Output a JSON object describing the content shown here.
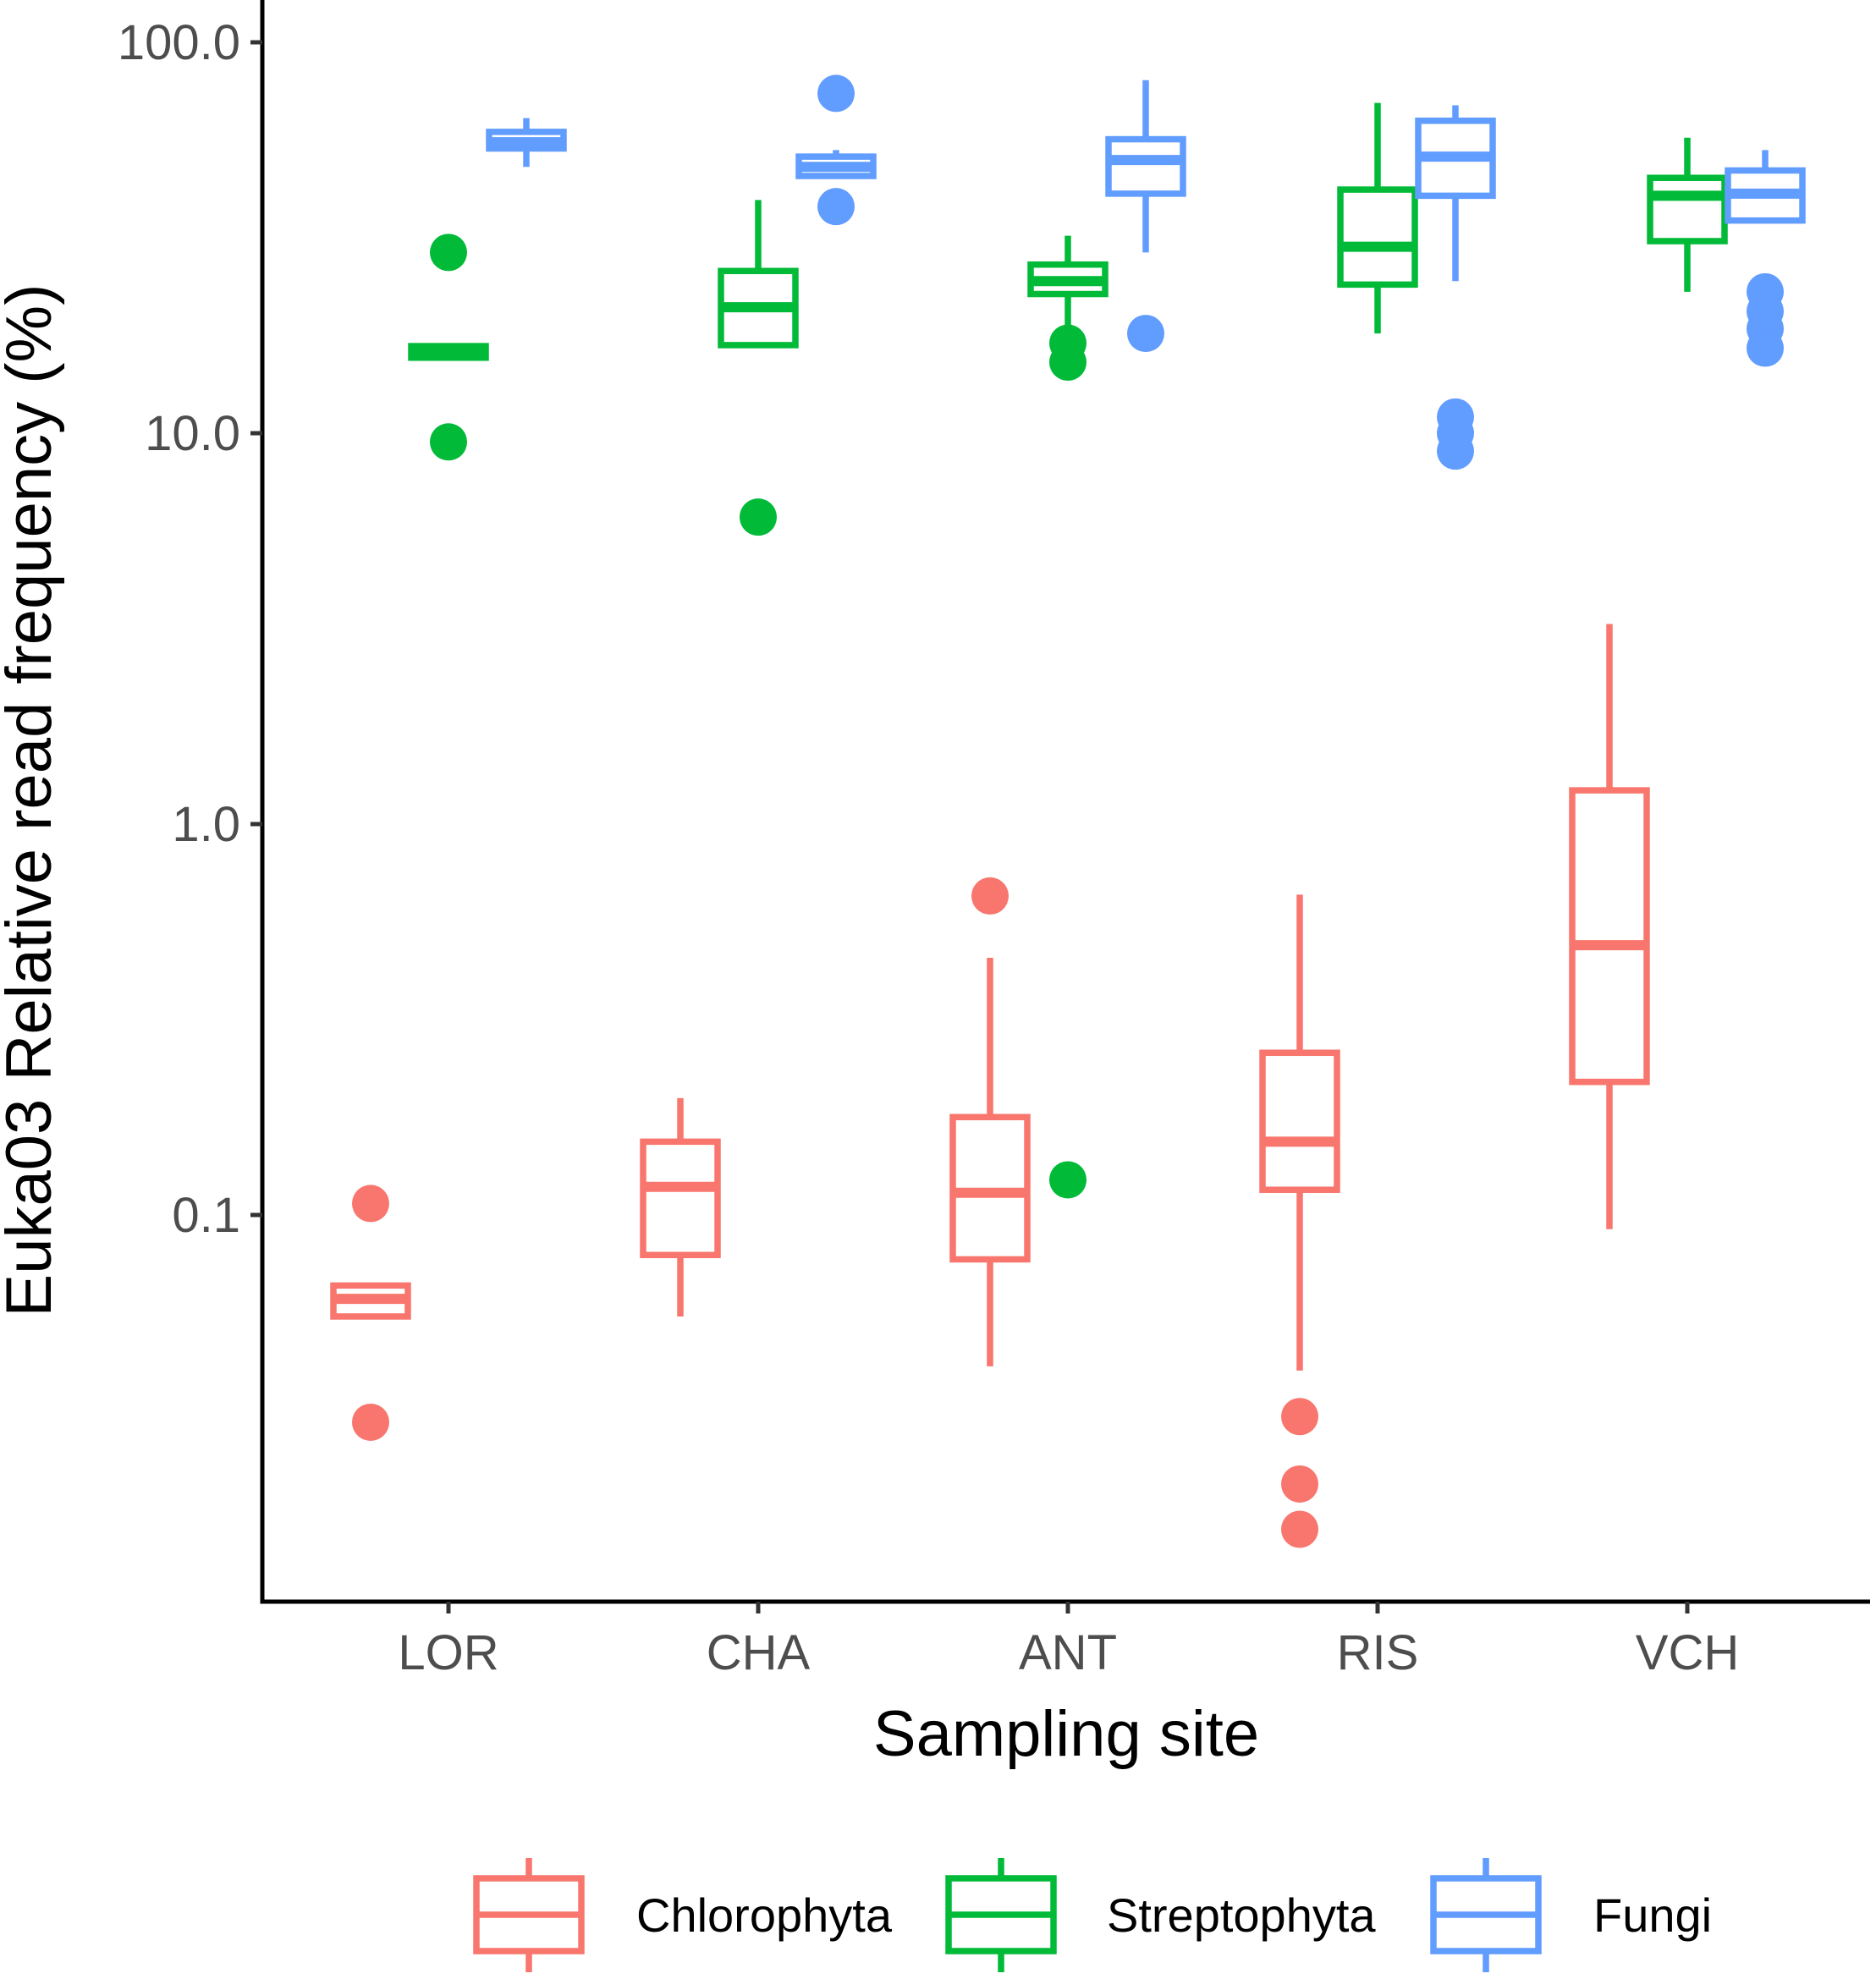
{
  "chart_data": {
    "type": "boxplot",
    "title": "",
    "xlabel": "Sampling site",
    "ylabel": "Euka03 Relative read frequency (%)",
    "y_scale": "log10",
    "ylim": [
      0.012,
      100
    ],
    "y_ticks": [
      0.1,
      1.0,
      10.0,
      100.0
    ],
    "y_tick_labels": [
      "0.1",
      "1.0",
      "10.0",
      "100.0"
    ],
    "categories": [
      "LOR",
      "CHA",
      "ANT",
      "RIS",
      "VCH"
    ],
    "legend": {
      "position": "bottom",
      "entries": [
        "Chlorophyta",
        "Streptophyta",
        "Fungi"
      ]
    },
    "series": [
      {
        "name": "Chlorophyta",
        "color": "#F8766D",
        "boxes": [
          {
            "category": "LOR",
            "whisker_low": 0.055,
            "q1": 0.055,
            "median": 0.061,
            "q3": 0.066,
            "whisker_high": 0.066,
            "outliers": [
              0.107,
              0.0295
            ]
          },
          {
            "category": "CHA",
            "whisker_low": 0.055,
            "q1": 0.079,
            "median": 0.118,
            "q3": 0.154,
            "whisker_high": 0.199,
            "outliers": []
          },
          {
            "category": "ANT",
            "whisker_low": 0.041,
            "q1": 0.077,
            "median": 0.114,
            "q3": 0.178,
            "whisker_high": 0.455,
            "outliers": [
              0.655
            ]
          },
          {
            "category": "RIS",
            "whisker_low": 0.04,
            "q1": 0.116,
            "median": 0.154,
            "q3": 0.26,
            "whisker_high": 0.66,
            "outliers": [
              0.0305,
              0.0205,
              0.0157
            ]
          },
          {
            "category": "VCH",
            "whisker_low": 0.092,
            "q1": 0.219,
            "median": 0.49,
            "q3": 1.22,
            "whisker_high": 3.25,
            "outliers": []
          }
        ]
      },
      {
        "name": "Streptophyta",
        "color": "#00BA38",
        "boxes": [
          {
            "category": "LOR",
            "whisker_low": 15.6,
            "q1": 15.6,
            "median": 16.0,
            "q3": 16.7,
            "whisker_high": 16.7,
            "outliers": [
              29.0,
              9.5
            ]
          },
          {
            "category": "CHA",
            "whisker_low": 16.8,
            "q1": 16.8,
            "median": 21.0,
            "q3": 26.0,
            "whisker_high": 39.5,
            "outliers": [
              6.1
            ]
          },
          {
            "category": "ANT",
            "whisker_low": 17.5,
            "q1": 22.7,
            "median": 24.5,
            "q3": 27.0,
            "whisker_high": 32.0,
            "outliers": [
              17.0,
              15.2,
              0.123
            ]
          },
          {
            "category": "RIS",
            "whisker_low": 18.0,
            "q1": 24.0,
            "median": 30.0,
            "q3": 42.0,
            "whisker_high": 70.0,
            "outliers": []
          },
          {
            "category": "VCH",
            "whisker_low": 23.0,
            "q1": 31.0,
            "median": 40.5,
            "q3": 45.0,
            "whisker_high": 57.0,
            "outliers": []
          }
        ]
      },
      {
        "name": "Fungi",
        "color": "#619CFF",
        "boxes": [
          {
            "category": "LOR",
            "whisker_low": 48.0,
            "q1": 53.5,
            "median": 55.5,
            "q3": 59.0,
            "whisker_high": 64.0,
            "outliers": []
          },
          {
            "category": "CHA",
            "whisker_low": 45.5,
            "q1": 45.5,
            "median": 48.0,
            "q3": 51.0,
            "whisker_high": 53.0,
            "outliers": [
              74.0,
              38.0
            ]
          },
          {
            "category": "ANT",
            "whisker_low": 29.0,
            "q1": 41.0,
            "median": 50.0,
            "q3": 56.5,
            "whisker_high": 80.0,
            "outliers": [
              18.0
            ]
          },
          {
            "category": "RIS",
            "whisker_low": 24.5,
            "q1": 40.5,
            "median": 51.0,
            "q3": 63.0,
            "whisker_high": 69.0,
            "outliers": [
              11.0,
              10.0,
              9.0
            ]
          },
          {
            "category": "VCH",
            "whisker_low": 35.0,
            "q1": 35.0,
            "median": 41.0,
            "q3": 47.0,
            "whisker_high": 53.0,
            "outliers": [
              23.0,
              20.5,
              18.5,
              16.5
            ]
          }
        ]
      }
    ]
  }
}
